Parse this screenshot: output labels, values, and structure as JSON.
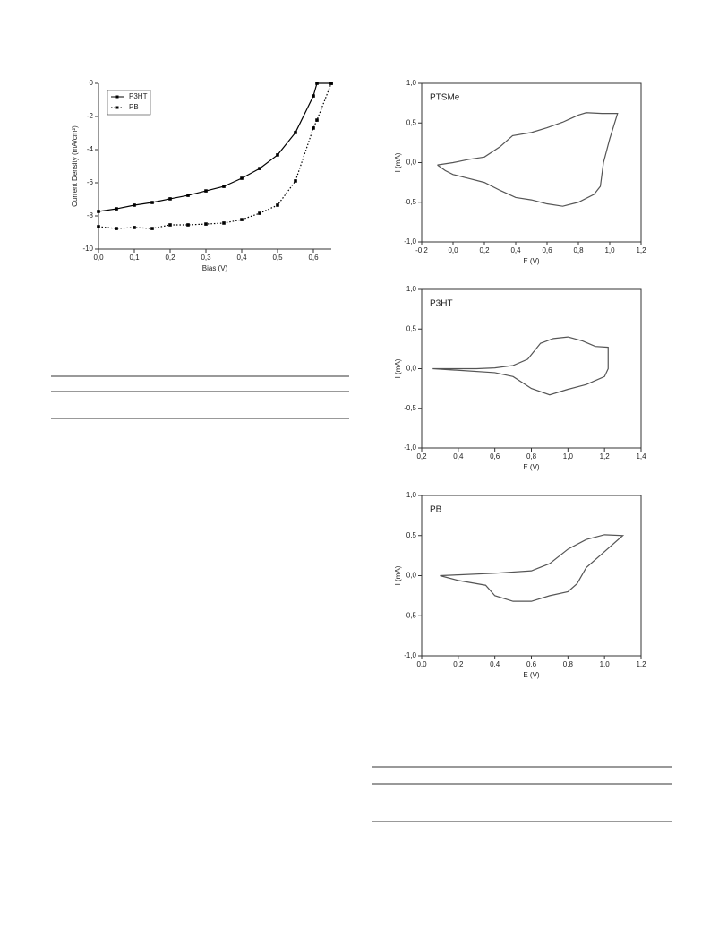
{
  "chart_data": [
    {
      "type": "line",
      "xlabel": "Bias (V)",
      "ylabel": "Current Density (mA/cm²)",
      "x": [
        0,
        0.05,
        0.1,
        0.15,
        0.2,
        0.25,
        0.3,
        0.35,
        0.4,
        0.45,
        0.5,
        0.55,
        0.6,
        0.61,
        0.65
      ],
      "series": [
        {
          "name": "P3HT",
          "color": "#000000",
          "line_style": "solid",
          "markers": true,
          "values": [
            -7.73,
            -7.57,
            -7.35,
            -7.19,
            -6.97,
            -6.76,
            -6.49,
            -6.22,
            -5.73,
            -5.14,
            -4.32,
            -2.97,
            -0.76,
            0,
            0
          ]
        },
        {
          "name": "PB",
          "color": "#000000",
          "line_style": "dotted",
          "markers": true,
          "values": [
            -8.65,
            -8.76,
            -8.7,
            -8.76,
            -8.54,
            -8.54,
            -8.49,
            -8.43,
            -8.22,
            -7.84,
            -7.35,
            -5.89,
            -2.7,
            -2.22,
            0
          ]
        }
      ],
      "xlim": [
        0,
        0.65
      ],
      "ylim": [
        -10,
        0
      ],
      "xticks": [
        {
          "value": 0,
          "label": "0,0"
        },
        {
          "value": 0.1,
          "label": "0,1"
        },
        {
          "value": 0.2,
          "label": "0,2"
        },
        {
          "value": 0.3,
          "label": "0,3"
        },
        {
          "value": 0.4,
          "label": "0,4"
        },
        {
          "value": 0.5,
          "label": "0,5"
        },
        {
          "value": 0.6,
          "label": "0,6"
        }
      ],
      "yticks": [
        -10,
        -8,
        -6,
        -4,
        -2,
        0
      ],
      "legend": "upper left",
      "frame": false
    },
    {
      "type": "line",
      "xlabel": "E (V)",
      "ylabel": "I (mA)",
      "series": [
        {
          "name": "PTSMe",
          "color": "#555555",
          "line_style": "solid",
          "markers": false,
          "x": [
            -0.1,
            0.0,
            0.1,
            0.2,
            0.3,
            0.38,
            0.5,
            0.6,
            0.7,
            0.8,
            0.85,
            0.95,
            1.05,
            1.0,
            0.96,
            0.94,
            0.9,
            0.8,
            0.7,
            0.6,
            0.5,
            0.4,
            0.3,
            0.2,
            0.1,
            0.0,
            -0.05,
            -0.1
          ],
          "values": [
            -0.03,
            0.0,
            0.04,
            0.07,
            0.2,
            0.34,
            0.38,
            0.44,
            0.51,
            0.6,
            0.63,
            0.62,
            0.62,
            0.3,
            0.0,
            -0.3,
            -0.4,
            -0.5,
            -0.55,
            -0.52,
            -0.47,
            -0.44,
            -0.35,
            -0.25,
            -0.2,
            -0.15,
            -0.1,
            -0.03
          ]
        }
      ],
      "xlim": [
        -0.2,
        1.2
      ],
      "ylim": [
        -1,
        1
      ],
      "xticks": [
        {
          "value": -0.2,
          "label": "-0,2"
        },
        {
          "value": 0,
          "label": "0,0"
        },
        {
          "value": 0.2,
          "label": "0,2"
        },
        {
          "value": 0.4,
          "label": "0,4"
        },
        {
          "value": 0.6,
          "label": "0,6"
        },
        {
          "value": 0.8,
          "label": "0,8"
        },
        {
          "value": 1,
          "label": "1,0"
        },
        {
          "value": 1.2,
          "label": "1,2"
        }
      ],
      "yticks": [
        {
          "value": -1,
          "label": "-1,0"
        },
        {
          "value": -0.5,
          "label": "-0,5"
        },
        {
          "value": 0,
          "label": "0,0"
        },
        {
          "value": 0.5,
          "label": "0,5"
        },
        {
          "value": 1,
          "label": "1,0"
        }
      ],
      "frame": true
    },
    {
      "type": "line",
      "xlabel": "E (V)",
      "ylabel": "I (mA)",
      "series": [
        {
          "name": "P3HT",
          "color": "#555555",
          "line_style": "solid",
          "markers": false,
          "x": [
            0.26,
            0.5,
            0.6,
            0.7,
            0.78,
            0.85,
            0.92,
            1.0,
            1.08,
            1.15,
            1.22,
            1.22,
            1.2,
            1.1,
            1.0,
            0.9,
            0.8,
            0.7,
            0.6,
            0.4,
            0.26
          ],
          "values": [
            0.0,
            0.0,
            0.01,
            0.04,
            0.12,
            0.32,
            0.38,
            0.4,
            0.35,
            0.28,
            0.27,
            0.0,
            -0.1,
            -0.2,
            -0.26,
            -0.33,
            -0.25,
            -0.1,
            -0.05,
            -0.02,
            0.0
          ]
        }
      ],
      "xlim": [
        0.2,
        1.4
      ],
      "ylim": [
        -1,
        1
      ],
      "xticks": [
        {
          "value": 0.2,
          "label": "0,2"
        },
        {
          "value": 0.4,
          "label": "0,4"
        },
        {
          "value": 0.6,
          "label": "0,6"
        },
        {
          "value": 0.8,
          "label": "0,8"
        },
        {
          "value": 1,
          "label": "1,0"
        },
        {
          "value": 1.2,
          "label": "1,2"
        },
        {
          "value": 1.4,
          "label": "1,4"
        }
      ],
      "yticks": [
        {
          "value": -1,
          "label": "-1,0"
        },
        {
          "value": -0.5,
          "label": "-0,5"
        },
        {
          "value": 0,
          "label": "0,0"
        },
        {
          "value": 0.5,
          "label": "0,5"
        },
        {
          "value": 1,
          "label": "1,0"
        }
      ],
      "frame": true
    },
    {
      "type": "line",
      "xlabel": "E (V)",
      "ylabel": "I (mA)",
      "series": [
        {
          "name": "PB",
          "color": "#555555",
          "line_style": "solid",
          "markers": false,
          "x": [
            0.1,
            0.2,
            0.4,
            0.6,
            0.7,
            0.8,
            0.9,
            1.0,
            1.1,
            1.0,
            0.9,
            0.85,
            0.8,
            0.7,
            0.6,
            0.5,
            0.4,
            0.35,
            0.2,
            0.1
          ],
          "values": [
            0.0,
            0.01,
            0.03,
            0.06,
            0.15,
            0.33,
            0.45,
            0.51,
            0.5,
            0.3,
            0.1,
            -0.1,
            -0.2,
            -0.25,
            -0.32,
            -0.32,
            -0.25,
            -0.12,
            -0.06,
            0.0
          ]
        }
      ],
      "xlim": [
        0,
        1.2
      ],
      "ylim": [
        -1,
        1
      ],
      "xticks": [
        {
          "value": 0,
          "label": "0,0"
        },
        {
          "value": 0.2,
          "label": "0,2"
        },
        {
          "value": 0.4,
          "label": "0,4"
        },
        {
          "value": 0.6,
          "label": "0,6"
        },
        {
          "value": 0.8,
          "label": "0,8"
        },
        {
          "value": 1,
          "label": "1,0"
        },
        {
          "value": 1.2,
          "label": "1,2"
        }
      ],
      "yticks": [
        {
          "value": -1,
          "label": "-1,0"
        },
        {
          "value": -0.5,
          "label": "-0,5"
        },
        {
          "value": 0,
          "label": "0,0"
        },
        {
          "value": 0.5,
          "label": "0,5"
        },
        {
          "value": 1,
          "label": "1,0"
        }
      ],
      "frame": true
    }
  ]
}
